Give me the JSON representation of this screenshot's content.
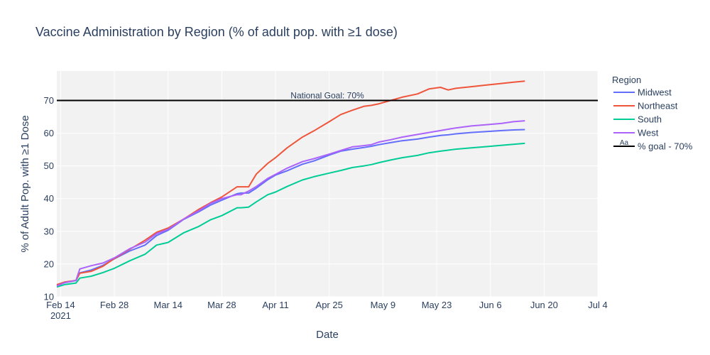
{
  "chart_data": {
    "type": "line",
    "title": "Vaccine Administration by Region (% of adult pop. with ≥1 dose)",
    "xlabel": "Date",
    "ylabel": "% of Adult Pop. with ≥1 Dose",
    "x_range": [
      "2021-02-13",
      "2021-07-04"
    ],
    "ylim": [
      10,
      79
    ],
    "x_ticks": [
      {
        "date": "2021-02-14",
        "label": "Feb 14",
        "sublabel": "2021"
      },
      {
        "date": "2021-02-28",
        "label": "Feb 28"
      },
      {
        "date": "2021-03-14",
        "label": "Mar 14"
      },
      {
        "date": "2021-03-28",
        "label": "Mar 28"
      },
      {
        "date": "2021-04-11",
        "label": "Apr 11"
      },
      {
        "date": "2021-04-25",
        "label": "Apr 25"
      },
      {
        "date": "2021-05-09",
        "label": "May 9"
      },
      {
        "date": "2021-05-23",
        "label": "May 23"
      },
      {
        "date": "2021-06-06",
        "label": "Jun 6"
      },
      {
        "date": "2021-06-20",
        "label": "Jun 20"
      },
      {
        "date": "2021-07-04",
        "label": "Jul 4"
      }
    ],
    "y_ticks": [
      10,
      20,
      30,
      40,
      50,
      60,
      70
    ],
    "grid": true,
    "legend": {
      "title": "Region",
      "position": "right"
    },
    "goal_line": {
      "y": 70,
      "annotation": "National Goal: 70%",
      "legend_label": "% goal - 70%",
      "legend_glyph": "Aa",
      "color": "#000000"
    },
    "x_dates": [
      "2021-02-13",
      "2021-02-15",
      "2021-02-18",
      "2021-02-19",
      "2021-02-22",
      "2021-02-25",
      "2021-02-28",
      "2021-03-04",
      "2021-03-08",
      "2021-03-11",
      "2021-03-14",
      "2021-03-18",
      "2021-03-22",
      "2021-03-25",
      "2021-03-28",
      "2021-04-01",
      "2021-04-02",
      "2021-04-04",
      "2021-04-06",
      "2021-04-09",
      "2021-04-11",
      "2021-04-14",
      "2021-04-18",
      "2021-04-21",
      "2021-04-25",
      "2021-04-28",
      "2021-05-01",
      "2021-05-04",
      "2021-05-06",
      "2021-05-08",
      "2021-05-11",
      "2021-05-14",
      "2021-05-18",
      "2021-05-21",
      "2021-05-24",
      "2021-05-26",
      "2021-05-28",
      "2021-06-01",
      "2021-06-05",
      "2021-06-09",
      "2021-06-12",
      "2021-06-15"
    ],
    "series": [
      {
        "name": "Midwest",
        "color": "#636efa",
        "values": [
          13.5,
          14.3,
          15.0,
          17.3,
          18.2,
          19.6,
          21.6,
          24.0,
          25.8,
          28.7,
          30.3,
          33.6,
          36.0,
          38.0,
          39.5,
          41.5,
          41.7,
          41.7,
          43.2,
          45.8,
          47.2,
          48.5,
          50.5,
          51.5,
          53.3,
          54.5,
          55.1,
          55.6,
          56.0,
          56.5,
          57.1,
          57.7,
          58.2,
          58.8,
          59.3,
          59.5,
          59.8,
          60.2,
          60.5,
          60.8,
          61.0,
          61.1
        ]
      },
      {
        "name": "Northeast",
        "color": "#ef553b",
        "values": [
          13.7,
          14.5,
          15.0,
          17.2,
          17.8,
          19.3,
          21.7,
          24.5,
          27.3,
          29.7,
          31.0,
          33.7,
          36.7,
          38.7,
          40.5,
          43.6,
          43.6,
          43.6,
          47.5,
          50.8,
          52.5,
          55.5,
          58.8,
          60.7,
          63.5,
          65.7,
          67.0,
          68.2,
          68.5,
          69.0,
          70.0,
          71.0,
          72.0,
          73.5,
          74.0,
          73.2,
          73.7,
          74.2,
          74.7,
          75.2,
          75.6,
          75.9
        ]
      },
      {
        "name": "South",
        "color": "#00cc96",
        "values": [
          13.0,
          13.7,
          14.2,
          15.7,
          16.3,
          17.4,
          18.7,
          21.0,
          23.0,
          25.8,
          26.6,
          29.5,
          31.5,
          33.5,
          34.8,
          37.2,
          37.2,
          37.4,
          39.0,
          41.2,
          42.0,
          43.7,
          45.7,
          46.7,
          47.8,
          48.6,
          49.5,
          50.0,
          50.4,
          51.0,
          51.8,
          52.5,
          53.2,
          54.0,
          54.5,
          54.8,
          55.1,
          55.5,
          55.9,
          56.3,
          56.6,
          56.9
        ]
      },
      {
        "name": "West",
        "color": "#ab63fa",
        "values": [
          13.3,
          14.3,
          15.0,
          18.5,
          19.5,
          20.3,
          21.9,
          24.7,
          26.7,
          29.3,
          30.6,
          33.7,
          36.3,
          38.5,
          40.0,
          41.2,
          41.2,
          42.3,
          43.7,
          46.2,
          47.4,
          49.3,
          51.3,
          52.2,
          53.6,
          54.7,
          55.8,
          56.2,
          56.5,
          57.3,
          58.0,
          58.8,
          59.6,
          60.2,
          60.8,
          61.2,
          61.6,
          62.2,
          62.6,
          63.0,
          63.5,
          63.8
        ]
      }
    ]
  }
}
